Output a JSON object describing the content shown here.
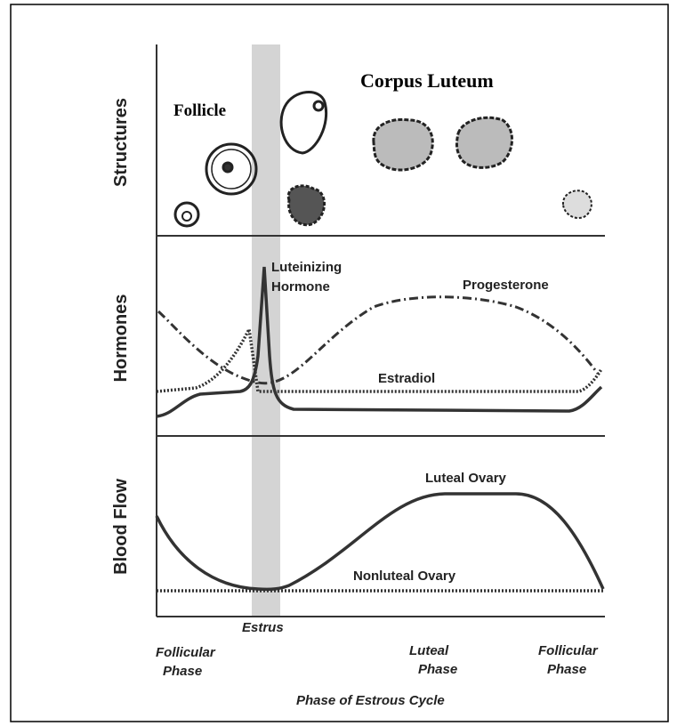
{
  "panels": {
    "structures": "Structures",
    "hormones": "Hormones",
    "blood_flow": "Blood Flow"
  },
  "labels": {
    "follicle": "Follicle",
    "corpus_luteum": "Corpus Luteum",
    "luteinizing_hormone": [
      "Luteinizing",
      "Hormone"
    ],
    "progesterone": "Progesterone",
    "estradiol": "Estradiol",
    "luteal_ovary": "Luteal Ovary",
    "nonluteal_ovary": "Nonluteal Ovary"
  },
  "x_axis": {
    "estrus": "Estrus",
    "phases": [
      [
        "Follicular",
        "Phase"
      ],
      [
        "Luteal",
        "Phase"
      ],
      [
        "Follicular",
        "Phase"
      ]
    ],
    "title": "Phase of Estrous Cycle"
  }
}
